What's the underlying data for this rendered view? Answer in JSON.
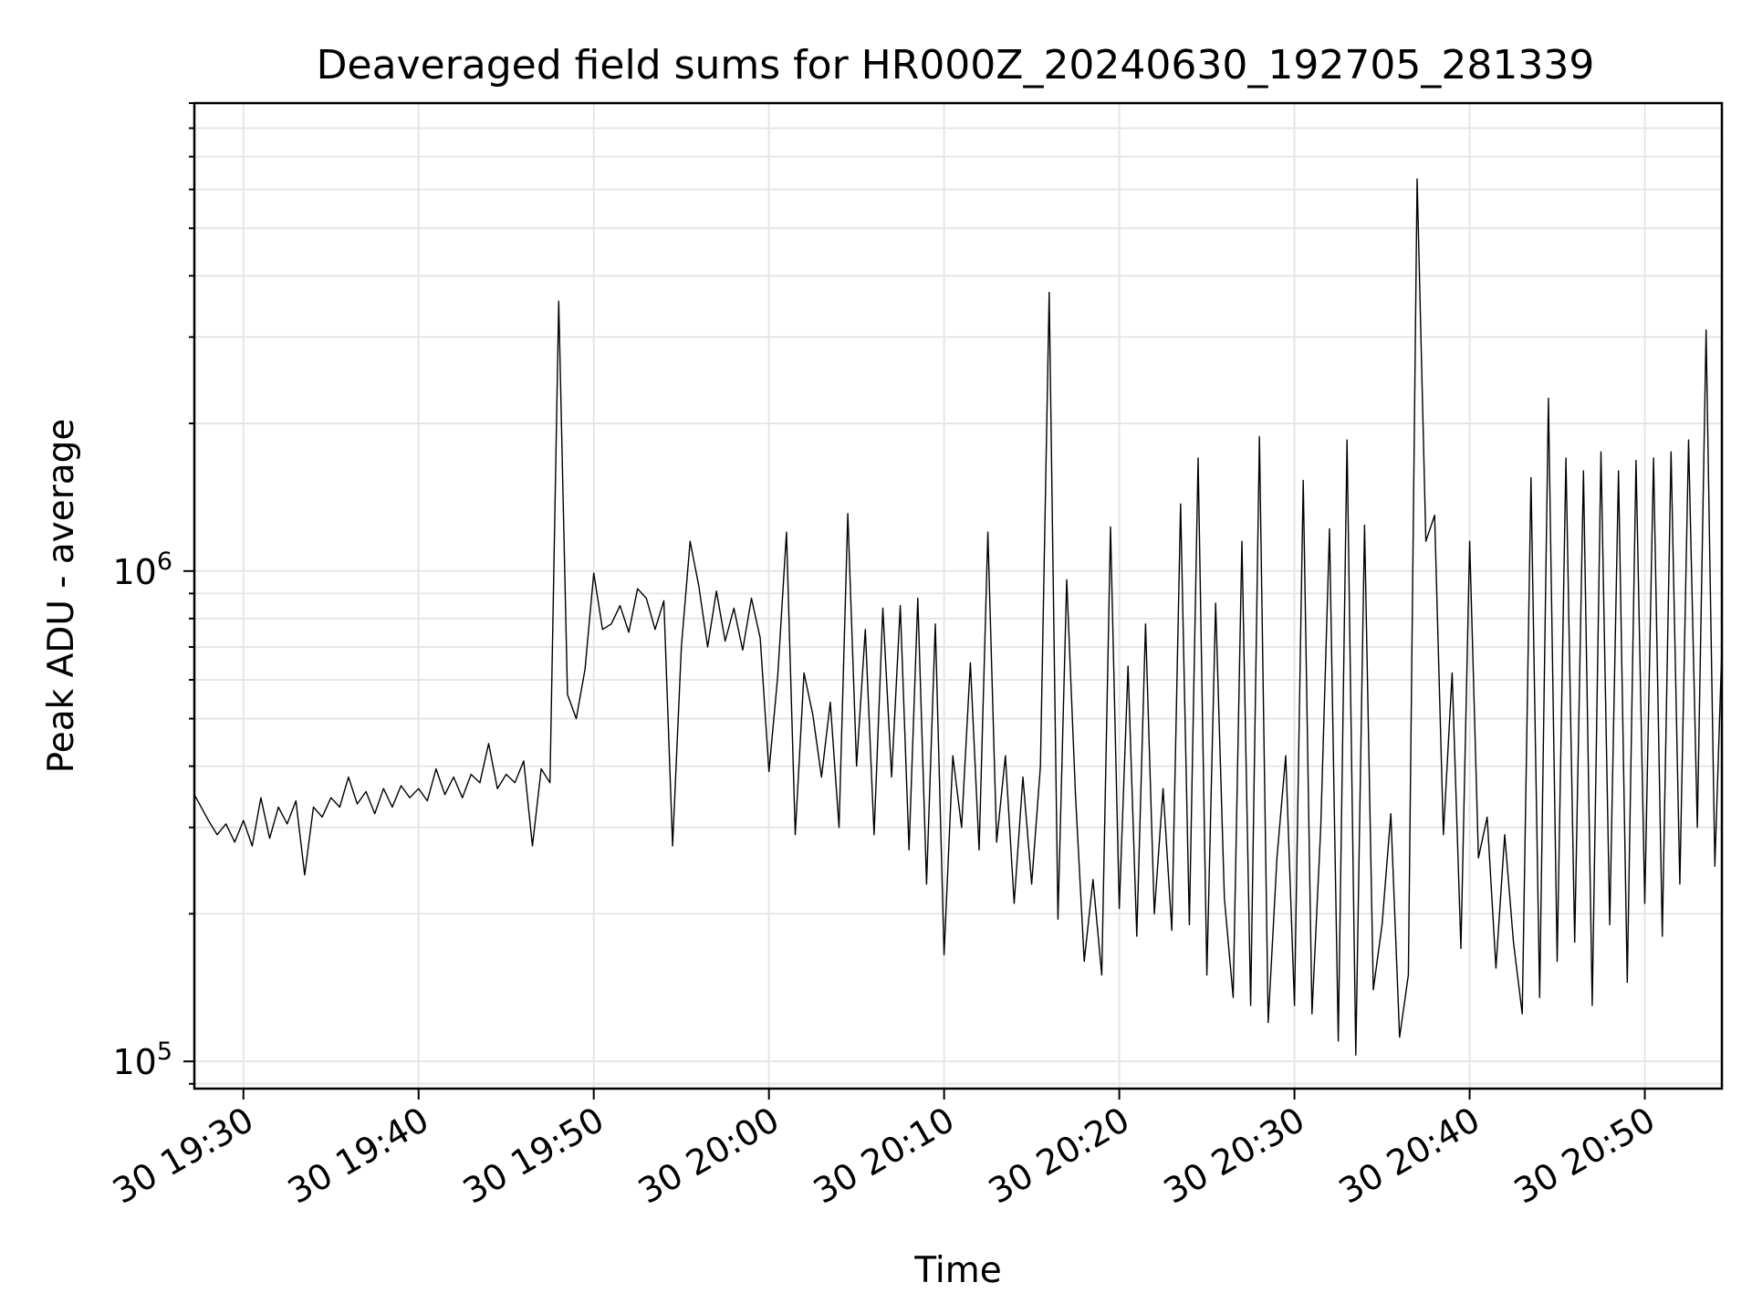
{
  "chart_data": {
    "type": "line",
    "title": "Deaveraged field sums for HR000Z_20240630_192705_281339",
    "xlabel": "Time",
    "ylabel": "Peak ADU - average",
    "yscale": "log",
    "ylim": [
      88000,
      9000000
    ],
    "xlim": [
      "2024-06-30 19:27:12",
      "2024-06-30 20:54:24"
    ],
    "grid": true,
    "line_color": "#000000",
    "x_ticks": [
      {
        "value": "2024-06-30 19:30",
        "label": "30 19:30"
      },
      {
        "value": "2024-06-30 19:40",
        "label": "30 19:40"
      },
      {
        "value": "2024-06-30 19:50",
        "label": "30 19:50"
      },
      {
        "value": "2024-06-30 20:00",
        "label": "30 20:00"
      },
      {
        "value": "2024-06-30 20:10",
        "label": "30 20:10"
      },
      {
        "value": "2024-06-30 20:20",
        "label": "30 20:20"
      },
      {
        "value": "2024-06-30 20:30",
        "label": "30 20:30"
      },
      {
        "value": "2024-06-30 20:40",
        "label": "30 20:40"
      },
      {
        "value": "2024-06-30 20:50",
        "label": "30 20:50"
      }
    ],
    "y_ticks": [
      {
        "value": 100000,
        "base": "10",
        "exp": "5"
      },
      {
        "value": 1000000,
        "base": "10",
        "exp": "6"
      }
    ],
    "series": [
      {
        "points": [
          [
            "2024-06-30 19:27:12",
            350000
          ],
          [
            "2024-06-30 19:28:00",
            310000
          ],
          [
            "2024-06-30 19:28:30",
            290000
          ],
          [
            "2024-06-30 19:29:00",
            305000
          ],
          [
            "2024-06-30 19:29:30",
            280000
          ],
          [
            "2024-06-30 19:30:00",
            310000
          ],
          [
            "2024-06-30 19:30:30",
            275000
          ],
          [
            "2024-06-30 19:31:00",
            345000
          ],
          [
            "2024-06-30 19:31:30",
            285000
          ],
          [
            "2024-06-30 19:32:00",
            330000
          ],
          [
            "2024-06-30 19:32:30",
            305000
          ],
          [
            "2024-06-30 19:33:00",
            340000
          ],
          [
            "2024-06-30 19:33:30",
            240000
          ],
          [
            "2024-06-30 19:34:00",
            330000
          ],
          [
            "2024-06-30 19:34:30",
            315000
          ],
          [
            "2024-06-30 19:35:00",
            345000
          ],
          [
            "2024-06-30 19:35:30",
            330000
          ],
          [
            "2024-06-30 19:36:00",
            380000
          ],
          [
            "2024-06-30 19:36:30",
            335000
          ],
          [
            "2024-06-30 19:37:00",
            355000
          ],
          [
            "2024-06-30 19:37:30",
            320000
          ],
          [
            "2024-06-30 19:38:00",
            360000
          ],
          [
            "2024-06-30 19:38:30",
            330000
          ],
          [
            "2024-06-30 19:39:00",
            365000
          ],
          [
            "2024-06-30 19:39:30",
            345000
          ],
          [
            "2024-06-30 19:40:00",
            360000
          ],
          [
            "2024-06-30 19:40:30",
            340000
          ],
          [
            "2024-06-30 19:41:00",
            395000
          ],
          [
            "2024-06-30 19:41:30",
            350000
          ],
          [
            "2024-06-30 19:42:00",
            380000
          ],
          [
            "2024-06-30 19:42:30",
            345000
          ],
          [
            "2024-06-30 19:43:00",
            385000
          ],
          [
            "2024-06-30 19:43:30",
            370000
          ],
          [
            "2024-06-30 19:44:00",
            445000
          ],
          [
            "2024-06-30 19:44:30",
            360000
          ],
          [
            "2024-06-30 19:45:00",
            385000
          ],
          [
            "2024-06-30 19:45:30",
            370000
          ],
          [
            "2024-06-30 19:46:00",
            410000
          ],
          [
            "2024-06-30 19:46:30",
            275000
          ],
          [
            "2024-06-30 19:47:00",
            395000
          ],
          [
            "2024-06-30 19:47:30",
            370000
          ],
          [
            "2024-06-30 19:48:00",
            3550000
          ],
          [
            "2024-06-30 19:48:30",
            560000
          ],
          [
            "2024-06-30 19:49:00",
            500000
          ],
          [
            "2024-06-30 19:49:30",
            630000
          ],
          [
            "2024-06-30 19:50:00",
            990000
          ],
          [
            "2024-06-30 19:50:30",
            760000
          ],
          [
            "2024-06-30 19:51:00",
            780000
          ],
          [
            "2024-06-30 19:51:30",
            850000
          ],
          [
            "2024-06-30 19:52:00",
            750000
          ],
          [
            "2024-06-30 19:52:30",
            920000
          ],
          [
            "2024-06-30 19:53:00",
            880000
          ],
          [
            "2024-06-30 19:53:30",
            760000
          ],
          [
            "2024-06-30 19:54:00",
            870000
          ],
          [
            "2024-06-30 19:54:30",
            275000
          ],
          [
            "2024-06-30 19:55:00",
            700000
          ],
          [
            "2024-06-30 19:55:30",
            1150000
          ],
          [
            "2024-06-30 19:56:00",
            930000
          ],
          [
            "2024-06-30 19:56:30",
            700000
          ],
          [
            "2024-06-30 19:57:00",
            910000
          ],
          [
            "2024-06-30 19:57:30",
            720000
          ],
          [
            "2024-06-30 19:58:00",
            840000
          ],
          [
            "2024-06-30 19:58:30",
            690000
          ],
          [
            "2024-06-30 19:59:00",
            880000
          ],
          [
            "2024-06-30 19:59:30",
            730000
          ],
          [
            "2024-06-30 20:00:00",
            390000
          ],
          [
            "2024-06-30 20:00:30",
            610000
          ],
          [
            "2024-06-30 20:01:00",
            1200000
          ],
          [
            "2024-06-30 20:01:30",
            290000
          ],
          [
            "2024-06-30 20:02:00",
            620000
          ],
          [
            "2024-06-30 20:02:30",
            510000
          ],
          [
            "2024-06-30 20:03:00",
            380000
          ],
          [
            "2024-06-30 20:03:30",
            540000
          ],
          [
            "2024-06-30 20:04:00",
            300000
          ],
          [
            "2024-06-30 20:04:30",
            1310000
          ],
          [
            "2024-06-30 20:05:00",
            400000
          ],
          [
            "2024-06-30 20:05:30",
            760000
          ],
          [
            "2024-06-30 20:06:00",
            290000
          ],
          [
            "2024-06-30 20:06:30",
            840000
          ],
          [
            "2024-06-30 20:07:00",
            380000
          ],
          [
            "2024-06-30 20:07:30",
            850000
          ],
          [
            "2024-06-30 20:08:00",
            270000
          ],
          [
            "2024-06-30 20:08:30",
            880000
          ],
          [
            "2024-06-30 20:09:00",
            230000
          ],
          [
            "2024-06-30 20:09:30",
            780000
          ],
          [
            "2024-06-30 20:10:00",
            165000
          ],
          [
            "2024-06-30 20:10:30",
            420000
          ],
          [
            "2024-06-30 20:11:00",
            300000
          ],
          [
            "2024-06-30 20:11:30",
            650000
          ],
          [
            "2024-06-30 20:12:00",
            270000
          ],
          [
            "2024-06-30 20:12:30",
            1200000
          ],
          [
            "2024-06-30 20:13:00",
            280000
          ],
          [
            "2024-06-30 20:13:30",
            420000
          ],
          [
            "2024-06-30 20:14:00",
            210000
          ],
          [
            "2024-06-30 20:14:30",
            380000
          ],
          [
            "2024-06-30 20:15:00",
            230000
          ],
          [
            "2024-06-30 20:15:30",
            400000
          ],
          [
            "2024-06-30 20:16:00",
            3700000
          ],
          [
            "2024-06-30 20:16:30",
            195000
          ],
          [
            "2024-06-30 20:17:00",
            960000
          ],
          [
            "2024-06-30 20:17:30",
            350000
          ],
          [
            "2024-06-30 20:18:00",
            160000
          ],
          [
            "2024-06-30 20:18:30",
            235000
          ],
          [
            "2024-06-30 20:19:00",
            150000
          ],
          [
            "2024-06-30 20:19:30",
            1230000
          ],
          [
            "2024-06-30 20:20:00",
            205000
          ],
          [
            "2024-06-30 20:20:30",
            640000
          ],
          [
            "2024-06-30 20:21:00",
            180000
          ],
          [
            "2024-06-30 20:21:30",
            780000
          ],
          [
            "2024-06-30 20:22:00",
            200000
          ],
          [
            "2024-06-30 20:22:30",
            360000
          ],
          [
            "2024-06-30 20:23:00",
            185000
          ],
          [
            "2024-06-30 20:23:30",
            1370000
          ],
          [
            "2024-06-30 20:24:00",
            190000
          ],
          [
            "2024-06-30 20:24:30",
            1700000
          ],
          [
            "2024-06-30 20:25:00",
            150000
          ],
          [
            "2024-06-30 20:25:30",
            860000
          ],
          [
            "2024-06-30 20:26:00",
            215000
          ],
          [
            "2024-06-30 20:26:30",
            135000
          ],
          [
            "2024-06-30 20:27:00",
            1150000
          ],
          [
            "2024-06-30 20:27:30",
            130000
          ],
          [
            "2024-06-30 20:28:00",
            1880000
          ],
          [
            "2024-06-30 20:28:30",
            120000
          ],
          [
            "2024-06-30 20:29:00",
            260000
          ],
          [
            "2024-06-30 20:29:30",
            420000
          ],
          [
            "2024-06-30 20:30:00",
            130000
          ],
          [
            "2024-06-30 20:30:30",
            1530000
          ],
          [
            "2024-06-30 20:31:00",
            125000
          ],
          [
            "2024-06-30 20:31:30",
            300000
          ],
          [
            "2024-06-30 20:32:00",
            1220000
          ],
          [
            "2024-06-30 20:32:30",
            110000
          ],
          [
            "2024-06-30 20:33:00",
            1850000
          ],
          [
            "2024-06-30 20:33:30",
            103000
          ],
          [
            "2024-06-30 20:34:00",
            1240000
          ],
          [
            "2024-06-30 20:34:30",
            140000
          ],
          [
            "2024-06-30 20:35:00",
            190000
          ],
          [
            "2024-06-30 20:35:30",
            320000
          ],
          [
            "2024-06-30 20:36:00",
            112000
          ],
          [
            "2024-06-30 20:36:30",
            150000
          ],
          [
            "2024-06-30 20:37:00",
            6300000
          ],
          [
            "2024-06-30 20:37:30",
            1150000
          ],
          [
            "2024-06-30 20:38:00",
            1300000
          ],
          [
            "2024-06-30 20:38:30",
            290000
          ],
          [
            "2024-06-30 20:39:00",
            620000
          ],
          [
            "2024-06-30 20:39:30",
            170000
          ],
          [
            "2024-06-30 20:40:00",
            1150000
          ],
          [
            "2024-06-30 20:40:30",
            260000
          ],
          [
            "2024-06-30 20:41:00",
            315000
          ],
          [
            "2024-06-30 20:41:30",
            155000
          ],
          [
            "2024-06-30 20:42:00",
            290000
          ],
          [
            "2024-06-30 20:42:30",
            175000
          ],
          [
            "2024-06-30 20:43:00",
            125000
          ],
          [
            "2024-06-30 20:43:30",
            1550000
          ],
          [
            "2024-06-30 20:44:00",
            135000
          ],
          [
            "2024-06-30 20:44:30",
            2250000
          ],
          [
            "2024-06-30 20:45:00",
            160000
          ],
          [
            "2024-06-30 20:45:30",
            1700000
          ],
          [
            "2024-06-30 20:46:00",
            175000
          ],
          [
            "2024-06-30 20:46:30",
            1600000
          ],
          [
            "2024-06-30 20:47:00",
            130000
          ],
          [
            "2024-06-30 20:47:30",
            1750000
          ],
          [
            "2024-06-30 20:48:00",
            190000
          ],
          [
            "2024-06-30 20:48:30",
            1600000
          ],
          [
            "2024-06-30 20:49:00",
            145000
          ],
          [
            "2024-06-30 20:49:30",
            1680000
          ],
          [
            "2024-06-30 20:50:00",
            210000
          ],
          [
            "2024-06-30 20:50:30",
            1700000
          ],
          [
            "2024-06-30 20:51:00",
            180000
          ],
          [
            "2024-06-30 20:51:30",
            1750000
          ],
          [
            "2024-06-30 20:52:00",
            230000
          ],
          [
            "2024-06-30 20:52:30",
            1850000
          ],
          [
            "2024-06-30 20:53:00",
            300000
          ],
          [
            "2024-06-30 20:53:30",
            3100000
          ],
          [
            "2024-06-30 20:54:00",
            250000
          ],
          [
            "2024-06-30 20:54:24",
            700000
          ]
        ]
      }
    ]
  }
}
